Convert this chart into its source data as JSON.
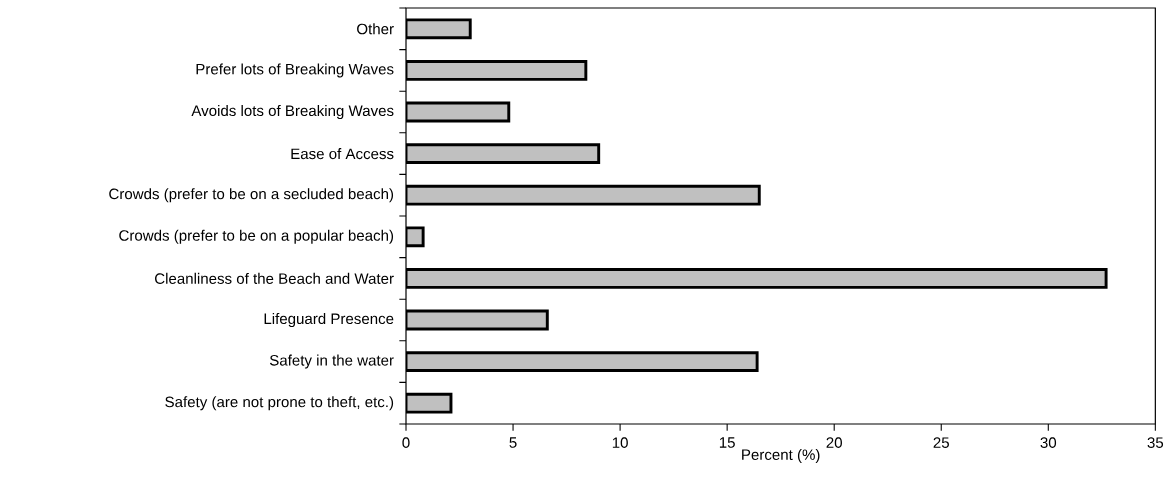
{
  "chart_data": {
    "type": "bar",
    "orientation": "horizontal",
    "xlabel": "Percent (%)",
    "categories": [
      "Other",
      "Prefer lots of Breaking Waves",
      "Avoids lots of Breaking Waves",
      "Ease of Access",
      "Crowds (prefer to be on a secluded beach)",
      "Crowds (prefer to be on a popular beach)",
      "Cleanliness of the Beach and Water",
      "Lifeguard Presence",
      "Safety in the water",
      "Safety (are not prone to theft, etc.)"
    ],
    "values": [
      3.0,
      8.4,
      4.8,
      9.0,
      16.5,
      0.8,
      32.7,
      6.6,
      16.4,
      2.1
    ],
    "color": "#c0c0c0",
    "xlim": [
      0,
      35
    ],
    "xticks": [
      0,
      5,
      10,
      15,
      20,
      25,
      30,
      35
    ],
    "grid": false
  }
}
